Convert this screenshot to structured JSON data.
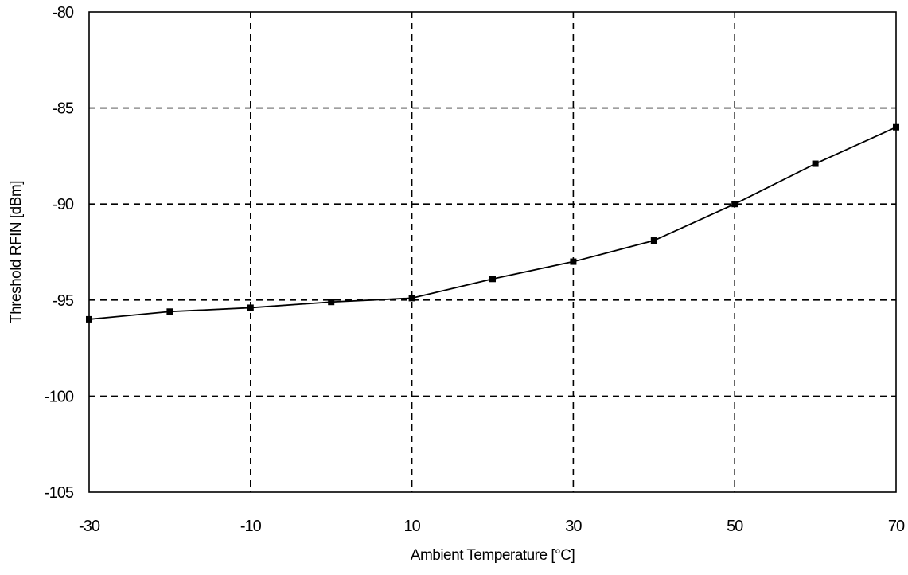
{
  "chart_data": {
    "type": "line",
    "title": "",
    "xlabel": "Ambient Temperature [°C]",
    "ylabel": "Threshold RFIN [dBm]",
    "xlim": [
      -30,
      70
    ],
    "ylim": [
      -105,
      -80
    ],
    "x_ticks": [
      -30,
      -10,
      10,
      30,
      50,
      70
    ],
    "y_ticks": [
      -80,
      -85,
      -90,
      -95,
      -100,
      -105
    ],
    "grid": true,
    "grid_style": "dashed",
    "legend": "none",
    "series": [
      {
        "color": "#000000",
        "marker": "square",
        "x": [
          -30,
          -20,
          -10,
          0,
          10,
          20,
          30,
          40,
          50,
          60,
          70
        ],
        "y": [
          -96,
          -95.6,
          -95.4,
          -95.1,
          -94.9,
          -93.9,
          -93,
          -91.9,
          -90,
          -87.9,
          -86
        ]
      }
    ]
  }
}
